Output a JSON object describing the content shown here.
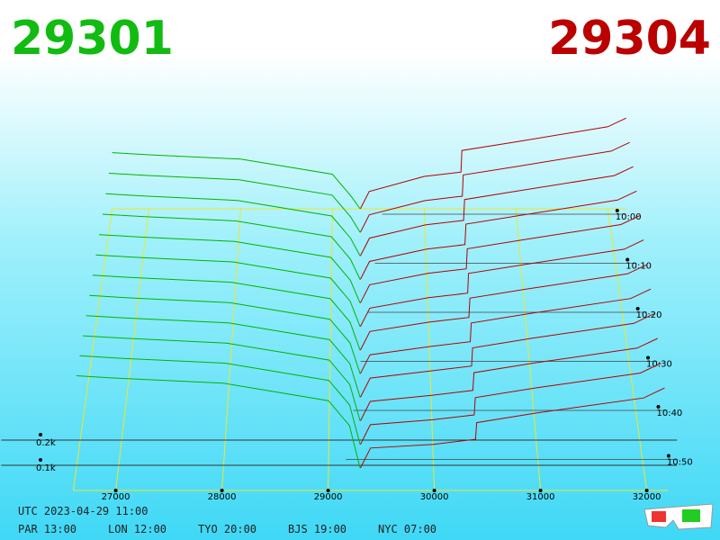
{
  "header": {
    "bid_price": "29301",
    "ask_price": "29304"
  },
  "chart_data": {
    "type": "depth3d",
    "price_ticks": [
      27000,
      28000,
      29000,
      30000,
      31000,
      32000
    ],
    "depth_ticks": [
      {
        "value": 0.1,
        "label": "0.1k"
      },
      {
        "value": 0.2,
        "label": "0.2k"
      }
    ],
    "time_ticks": [
      "10:00",
      "10:10",
      "10:20",
      "10:30",
      "10:40",
      "10:50"
    ],
    "bid_color": "#00b400",
    "ask_color": "#b40000",
    "bid_prices": [
      26600,
      27000,
      28000,
      29000,
      29200,
      29301
    ],
    "ask_prices": [
      29304,
      29400,
      30000,
      30400,
      30410,
      31000,
      32000,
      32200
    ],
    "bids": [
      [
        0.26,
        0.25,
        0.23,
        0.16,
        0.06,
        0
      ],
      [
        0.27,
        0.26,
        0.24,
        0.17,
        0.07,
        0
      ],
      [
        0.28,
        0.27,
        0.25,
        0.18,
        0.08,
        0
      ],
      [
        0.29,
        0.28,
        0.26,
        0.19,
        0.09,
        0
      ],
      [
        0.3,
        0.29,
        0.27,
        0.2,
        0.1,
        0
      ],
      [
        0.31,
        0.3,
        0.28,
        0.21,
        0.11,
        0
      ],
      [
        0.32,
        0.31,
        0.29,
        0.22,
        0.12,
        0
      ],
      [
        0.33,
        0.32,
        0.3,
        0.23,
        0.13,
        0
      ],
      [
        0.34,
        0.33,
        0.31,
        0.24,
        0.14,
        0
      ],
      [
        0.35,
        0.34,
        0.32,
        0.25,
        0.15,
        0
      ],
      [
        0.36,
        0.35,
        0.33,
        0.26,
        0.16,
        0
      ],
      [
        0.37,
        0.36,
        0.34,
        0.27,
        0.17,
        0
      ]
    ],
    "asks": [
      [
        0,
        0.08,
        0.15,
        0.17,
        0.27,
        0.31,
        0.38,
        0.42
      ],
      [
        0,
        0.08,
        0.145,
        0.165,
        0.262,
        0.302,
        0.371,
        0.411
      ],
      [
        0,
        0.08,
        0.14,
        0.16,
        0.254,
        0.294,
        0.362,
        0.402
      ],
      [
        0,
        0.08,
        0.135,
        0.155,
        0.246,
        0.286,
        0.353,
        0.393
      ],
      [
        0,
        0.08,
        0.13,
        0.15,
        0.238,
        0.278,
        0.344,
        0.384
      ],
      [
        0,
        0.08,
        0.125,
        0.145,
        0.23,
        0.27,
        0.335,
        0.375
      ],
      [
        0,
        0.08,
        0.12,
        0.14,
        0.222,
        0.262,
        0.326,
        0.366
      ],
      [
        0,
        0.08,
        0.115,
        0.135,
        0.214,
        0.254,
        0.317,
        0.357
      ],
      [
        0,
        0.08,
        0.11,
        0.13,
        0.206,
        0.246,
        0.308,
        0.348
      ],
      [
        0,
        0.08,
        0.105,
        0.125,
        0.198,
        0.238,
        0.299,
        0.339
      ],
      [
        0,
        0.08,
        0.1,
        0.12,
        0.19,
        0.23,
        0.29,
        0.33
      ],
      [
        0,
        0.08,
        0.095,
        0.115,
        0.182,
        0.222,
        0.281,
        0.321
      ]
    ]
  },
  "footer": {
    "utc": "UTC 2023-04-29 11:00",
    "cities": [
      "PAR 13:00",
      "LON 12:00",
      "TYO 20:00",
      "BJS 19:00",
      "NYC 07:00"
    ]
  }
}
